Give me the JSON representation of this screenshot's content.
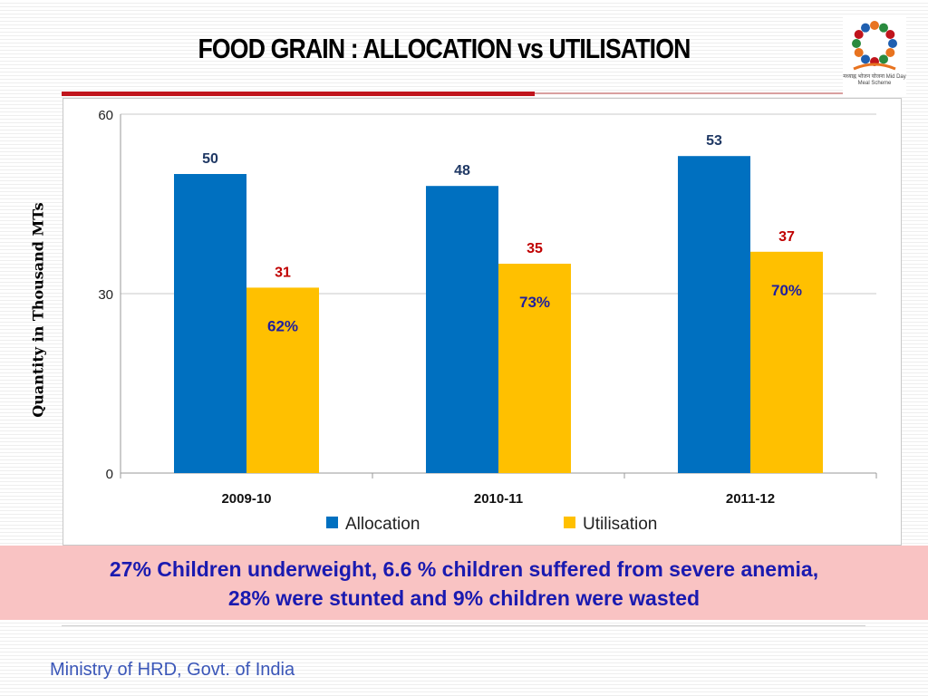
{
  "slide": {
    "title": "FOOD GRAIN : ALLOCATION vs UTILISATION",
    "logo_caption": "मध्याह्न भोजन योजना Mid Day Meal Scheme",
    "callout_line1": "27% Children underweight, 6.6 % children suffered from severe anemia,",
    "callout_line2": "28% were stunted and 9% children were wasted",
    "footer": "Ministry of HRD, Govt. of India"
  },
  "colors": {
    "allocation": "#0070c0",
    "utilisation": "#ffc000",
    "allocation_label": "#1f3864",
    "utilisation_label": "#c00000",
    "percent_label": "#1f1f9f",
    "title_rule": "#c0141c"
  },
  "chart_data": {
    "type": "bar",
    "categories": [
      "2009-10",
      "2010-11",
      "2011-12"
    ],
    "series": [
      {
        "name": "Allocation",
        "values": [
          50,
          48,
          53
        ]
      },
      {
        "name": "Utilisation",
        "values": [
          31,
          35,
          37
        ]
      }
    ],
    "utilisation_percent": [
      "62%",
      "73%",
      "70%"
    ],
    "ylabel": "Quantity in  Thousand MTs",
    "xlabel": "",
    "ylim": [
      0,
      60
    ],
    "yticks": [
      0,
      30,
      60
    ],
    "grid": true,
    "legend": "bottom"
  }
}
